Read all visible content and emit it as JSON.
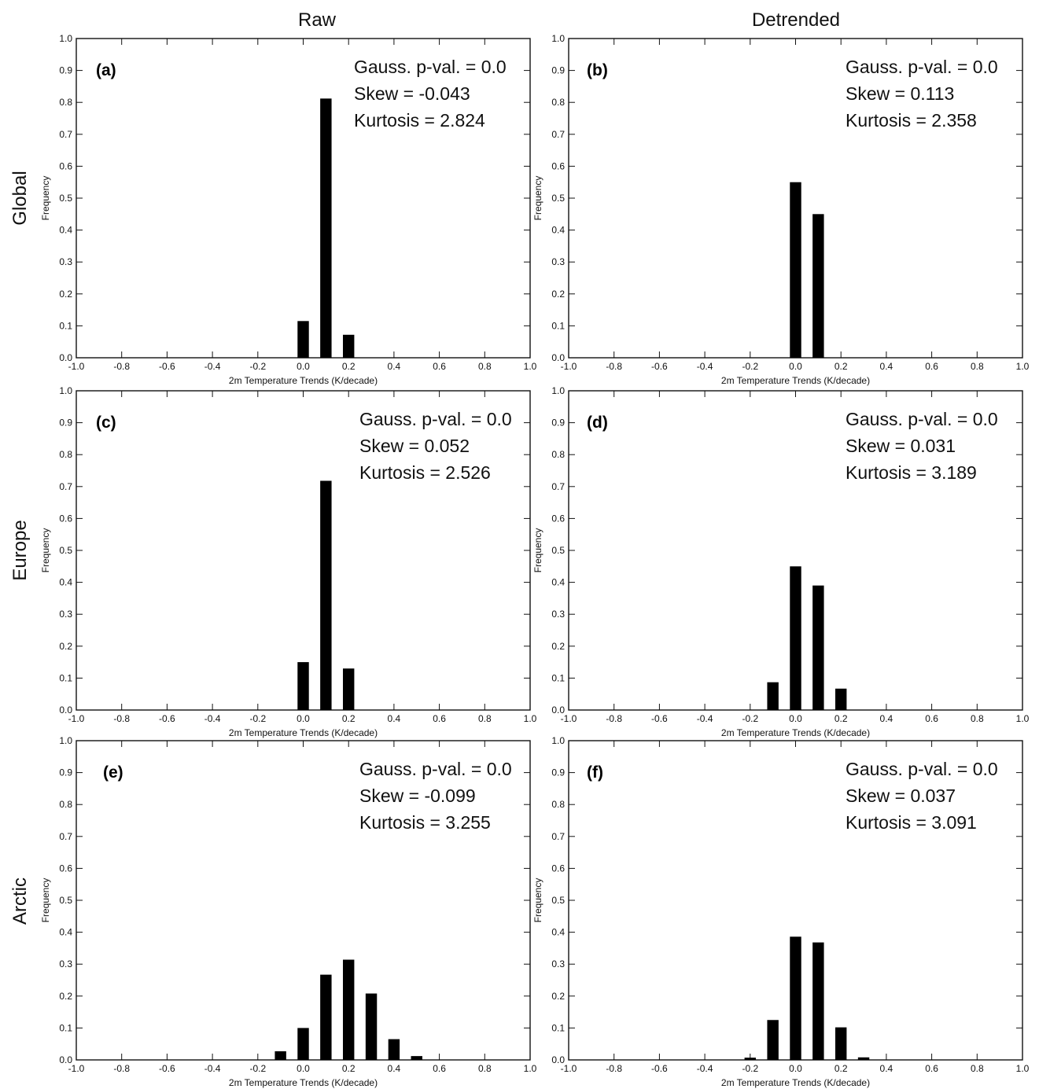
{
  "figure": {
    "column_titles": [
      "Raw",
      "Detrended"
    ],
    "row_titles": [
      "Global",
      "Europe",
      "Arctic"
    ]
  },
  "chart_data": [
    {
      "type": "bar",
      "panel": "(a)",
      "row": "Global",
      "column": "Raw",
      "x": [
        0.0,
        0.1,
        0.2
      ],
      "values": [
        0.115,
        0.812,
        0.072
      ],
      "xlabel": "2m Temperature Trends (K/decade)",
      "ylabel": "Frequency",
      "xlim": [
        -1.0,
        1.0
      ],
      "ylim": [
        0.0,
        1.0
      ],
      "xticks": [
        "-1.0",
        "-0.8",
        "-0.6",
        "-0.4",
        "-0.2",
        "0.0",
        "0.2",
        "0.4",
        "0.6",
        "0.8",
        "1.0"
      ],
      "yticks": [
        "0.0",
        "0.1",
        "0.2",
        "0.3",
        "0.4",
        "0.5",
        "0.6",
        "0.7",
        "0.8",
        "0.9",
        "1.0"
      ],
      "annotations": [
        "Gauss. p-val. = 0.0",
        "Skew = -0.043",
        "Kurtosis = 2.824"
      ],
      "grid": false
    },
    {
      "type": "bar",
      "panel": "(b)",
      "row": "Global",
      "column": "Detrended",
      "x": [
        0.0,
        0.1
      ],
      "values": [
        0.55,
        0.45
      ],
      "xlabel": "2m Temperature Trends (K/decade)",
      "ylabel": "Frequency",
      "xlim": [
        -1.0,
        1.0
      ],
      "ylim": [
        0.0,
        1.0
      ],
      "xticks": [
        "-1.0",
        "-0.8",
        "-0.6",
        "-0.4",
        "-0.2",
        "0.0",
        "0.2",
        "0.4",
        "0.6",
        "0.8",
        "1.0"
      ],
      "yticks": [
        "0.0",
        "0.1",
        "0.2",
        "0.3",
        "0.4",
        "0.5",
        "0.6",
        "0.7",
        "0.8",
        "0.9",
        "1.0"
      ],
      "annotations": [
        "Gauss. p-val. = 0.0",
        "Skew = 0.113",
        "Kurtosis = 2.358"
      ],
      "grid": false
    },
    {
      "type": "bar",
      "panel": "(c)",
      "row": "Europe",
      "column": "Raw",
      "x": [
        0.0,
        0.1,
        0.2
      ],
      "values": [
        0.15,
        0.718,
        0.13
      ],
      "xlabel": "2m Temperature Trends (K/decade)",
      "ylabel": "Frequency",
      "xlim": [
        -1.0,
        1.0
      ],
      "ylim": [
        0.0,
        1.0
      ],
      "xticks": [
        "-1.0",
        "-0.8",
        "-0.6",
        "-0.4",
        "-0.2",
        "0.0",
        "0.2",
        "0.4",
        "0.6",
        "0.8",
        "1.0"
      ],
      "yticks": [
        "0.0",
        "0.1",
        "0.2",
        "0.3",
        "0.4",
        "0.5",
        "0.6",
        "0.7",
        "0.8",
        "0.9",
        "1.0"
      ],
      "annotations": [
        "Gauss. p-val. = 0.0",
        "Skew = 0.052",
        "Kurtosis = 2.526"
      ],
      "grid": false
    },
    {
      "type": "bar",
      "panel": "(d)",
      "row": "Europe",
      "column": "Detrended",
      "x": [
        -0.1,
        0.0,
        0.1,
        0.2
      ],
      "values": [
        0.087,
        0.45,
        0.39,
        0.067
      ],
      "xlabel": "2m Temperature Trends (K/decade)",
      "ylabel": "Frequency",
      "xlim": [
        -1.0,
        1.0
      ],
      "ylim": [
        0.0,
        1.0
      ],
      "xticks": [
        "-1.0",
        "-0.8",
        "-0.6",
        "-0.4",
        "-0.2",
        "0.0",
        "0.2",
        "0.4",
        "0.6",
        "0.8",
        "1.0"
      ],
      "yticks": [
        "0.0",
        "0.1",
        "0.2",
        "0.3",
        "0.4",
        "0.5",
        "0.6",
        "0.7",
        "0.8",
        "0.9",
        "1.0"
      ],
      "annotations": [
        "Gauss. p-val. = 0.0",
        "Skew = 0.031",
        "Kurtosis = 3.189"
      ],
      "grid": false
    },
    {
      "type": "bar",
      "panel": "(e)",
      "row": "Arctic",
      "column": "Raw",
      "x": [
        -0.1,
        0.0,
        0.1,
        0.2,
        0.3,
        0.4,
        0.5
      ],
      "values": [
        0.027,
        0.1,
        0.267,
        0.314,
        0.208,
        0.065,
        0.012
      ],
      "xlabel": "2m Temperature Trends (K/decade)",
      "ylabel": "Frequency",
      "xlim": [
        -1.0,
        1.0
      ],
      "ylim": [
        0.0,
        1.0
      ],
      "xticks": [
        "-1.0",
        "-0.8",
        "-0.6",
        "-0.4",
        "-0.2",
        "0.0",
        "0.2",
        "0.4",
        "0.6",
        "0.8",
        "1.0"
      ],
      "yticks": [
        "0.0",
        "0.1",
        "0.2",
        "0.3",
        "0.4",
        "0.5",
        "0.6",
        "0.7",
        "0.8",
        "0.9",
        "1.0"
      ],
      "annotations": [
        "Gauss. p-val. = 0.0",
        "Skew = -0.099",
        "Kurtosis = 3.255"
      ],
      "grid": false
    },
    {
      "type": "bar",
      "panel": "(f)",
      "row": "Arctic",
      "column": "Detrended",
      "x": [
        -0.2,
        -0.1,
        0.0,
        0.1,
        0.2,
        0.3
      ],
      "values": [
        0.007,
        0.125,
        0.386,
        0.368,
        0.102,
        0.008
      ],
      "xlabel": "2m Temperature Trends (K/decade)",
      "ylabel": "Frequency",
      "xlim": [
        -1.0,
        1.0
      ],
      "ylim": [
        0.0,
        1.0
      ],
      "xticks": [
        "-1.0",
        "-0.8",
        "-0.6",
        "-0.4",
        "-0.2",
        "0.0",
        "0.2",
        "0.4",
        "0.6",
        "0.8",
        "1.0"
      ],
      "yticks": [
        "0.0",
        "0.1",
        "0.2",
        "0.3",
        "0.4",
        "0.5",
        "0.6",
        "0.7",
        "0.8",
        "0.9",
        "1.0"
      ],
      "annotations": [
        "Gauss. p-val. = 0.0",
        "Skew = 0.037",
        "Kurtosis = 3.091"
      ],
      "grid": false
    }
  ]
}
